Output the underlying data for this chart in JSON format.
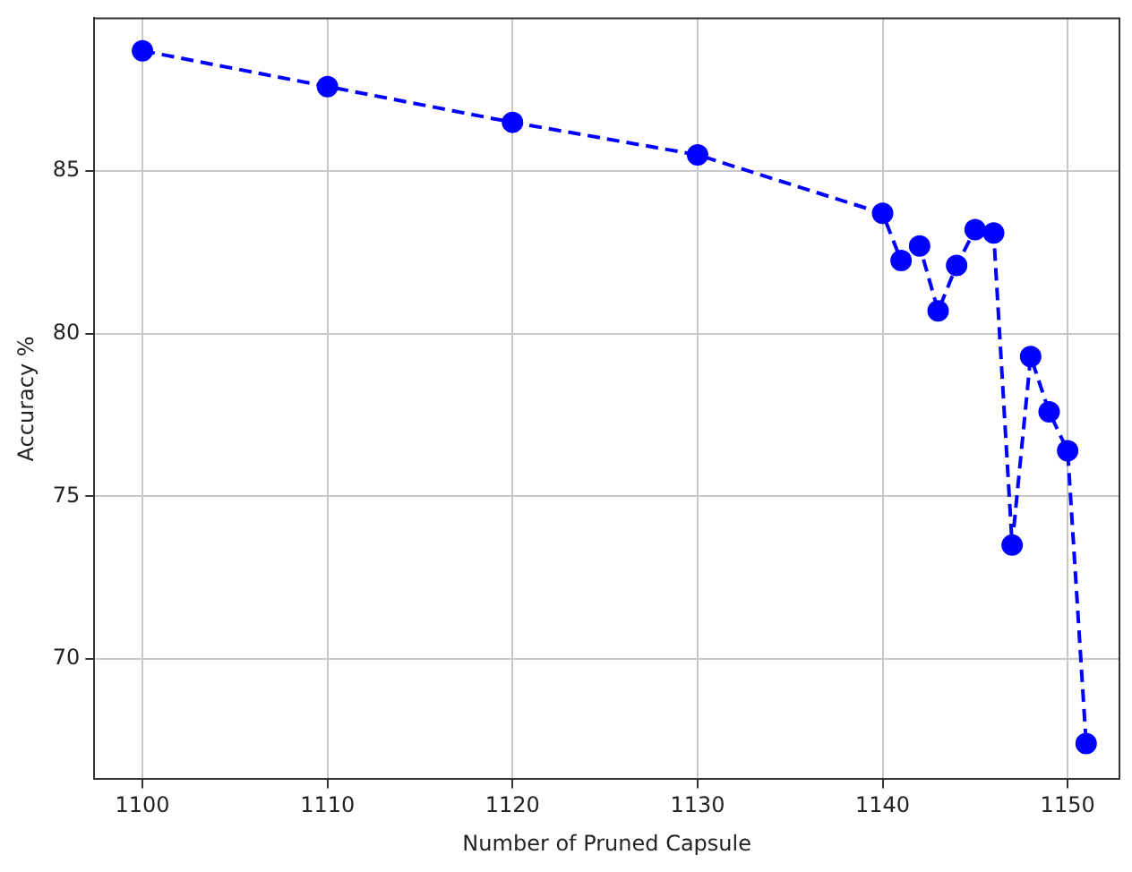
{
  "chart_data": {
    "type": "line",
    "xlabel": "Number of Pruned Capsule",
    "ylabel": "Accuracy %",
    "x": [
      1100,
      1110,
      1120,
      1130,
      1140,
      1141,
      1142,
      1143,
      1144,
      1145,
      1146,
      1147,
      1148,
      1149,
      1150,
      1151
    ],
    "series": [
      {
        "color": "#0000ff",
        "values": [
          88.7,
          87.6,
          86.5,
          85.5,
          83.7,
          82.25,
          82.7,
          80.7,
          82.1,
          83.2,
          83.1,
          73.5,
          79.3,
          77.6,
          76.4,
          67.4
        ]
      }
    ],
    "xlim": [
      1097.4,
      1152.8
    ],
    "xticks": [
      1100,
      1110,
      1120,
      1130,
      1140,
      1150
    ],
    "ylim": [
      66.3,
      89.7
    ],
    "yticks": [
      70,
      75,
      80,
      85
    ],
    "grid": true,
    "marker": "circle",
    "line_style": "dashed",
    "legend": false
  }
}
